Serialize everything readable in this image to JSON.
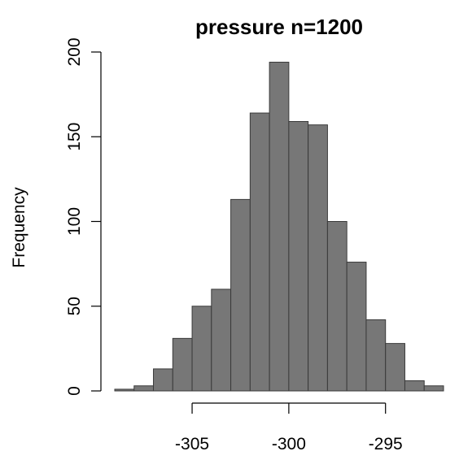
{
  "chart_data": {
    "type": "bar",
    "title": "pressure  n=1200",
    "xlabel": "",
    "ylabel": "Frequency",
    "bin_edges": [
      -309,
      -308,
      -307,
      -306,
      -305,
      -304,
      -303,
      -302,
      -301,
      -300,
      -299,
      -298,
      -297,
      -296,
      -295,
      -294,
      -293,
      -292
    ],
    "values": [
      1,
      3,
      13,
      31,
      50,
      60,
      113,
      164,
      194,
      159,
      157,
      100,
      76,
      42,
      28,
      6,
      3
    ],
    "xlim": [
      -309,
      -292
    ],
    "ylim": [
      0,
      200
    ],
    "x_ticks": [
      -305,
      -300,
      -295
    ],
    "x_tick_labels": [
      "-305",
      "-300",
      "-295"
    ],
    "y_ticks": [
      0,
      50,
      100,
      150,
      200
    ],
    "y_tick_labels": [
      "0",
      "50",
      "100",
      "150",
      "200"
    ],
    "bar_color": "#777777",
    "grid": false
  }
}
